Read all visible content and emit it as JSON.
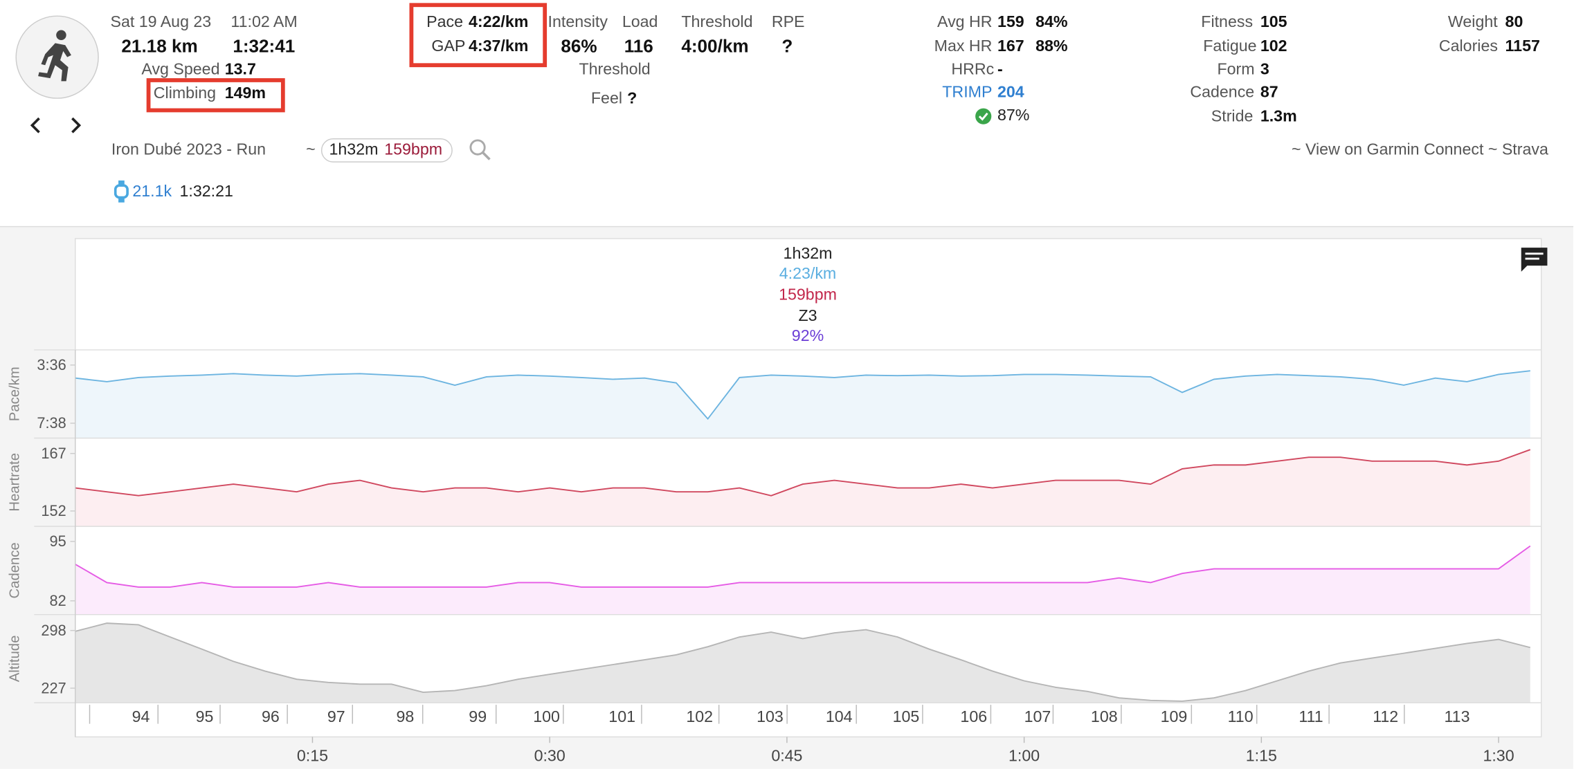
{
  "header": {
    "date": "Sat 19 Aug 23",
    "time": "11:02 AM",
    "distance": "21.18 km",
    "duration": "1:32:41",
    "avg_speed_label": "Avg Speed",
    "avg_speed": "13.7",
    "climbing_label": "Climbing",
    "climbing": "149m",
    "pace_label": "Pace",
    "pace": "4:22/km",
    "gap_label": "GAP",
    "gap": "4:37/km",
    "intensity_label": "Intensity",
    "intensity": "86%",
    "load_label": "Load",
    "load": "116",
    "threshold_label": "Threshold",
    "threshold": "4:00/km",
    "rpe_label": "RPE",
    "rpe": "?",
    "threshold_label2": "Threshold",
    "feel_label": "Feel",
    "feel": "?",
    "avg_hr_label": "Avg HR",
    "avg_hr": "159",
    "avg_hr_pct": "84%",
    "max_hr_label": "Max HR",
    "max_hr": "167",
    "max_hr_pct": "88%",
    "hrrc_label": "HRRc",
    "hrrc": "-",
    "trimp_label": "TRIMP",
    "trimp": "204",
    "trimp_pct": "87%",
    "fitness_label": "Fitness",
    "fitness": "105",
    "fatigue_label": "Fatigue",
    "fatigue": "102",
    "form_label": "Form",
    "form": "3",
    "cadence_label": "Cadence",
    "cadence": "87",
    "stride_label": "Stride",
    "stride": "1.3m",
    "weight_label": "Weight",
    "weight": "80",
    "calories_label": "Calories",
    "calories": "1157",
    "name": "Iron Dubé 2023 - Run",
    "tilde": "~",
    "pill_duration": "1h32m",
    "pill_hr": "159bpm",
    "links": "~ View on Garmin Connect ~ Strava",
    "split_distance": "21.1k",
    "split_time": "1:32:21"
  },
  "summary": {
    "duration": "1h32m",
    "pace": "4:23/km",
    "hr": "159bpm",
    "zone": "Z3",
    "efficiency": "92%"
  },
  "time_axis": {
    "xlim": [
      0,
      92.7
    ],
    "xticks": [
      {
        "value": 15,
        "label": "0:15"
      },
      {
        "value": 30,
        "label": "0:30"
      },
      {
        "value": 45,
        "label": "0:45"
      },
      {
        "value": 60,
        "label": "1:00"
      },
      {
        "value": 75,
        "label": "1:15"
      },
      {
        "value": 90,
        "label": "1:30"
      }
    ]
  },
  "km_axis": {
    "xticks": [
      {
        "value": 0.91,
        "label": "94"
      },
      {
        "value": 5.23,
        "label": "95"
      },
      {
        "value": 9.16,
        "label": "96"
      },
      {
        "value": 13.41,
        "label": "97"
      },
      {
        "value": 17.53,
        "label": "98"
      },
      {
        "value": 21.97,
        "label": "99"
      },
      {
        "value": 26.61,
        "label": "100"
      },
      {
        "value": 30.86,
        "label": "101"
      },
      {
        "value": 35.81,
        "label": "102"
      },
      {
        "value": 40.7,
        "label": "103"
      },
      {
        "value": 45.01,
        "label": "104"
      },
      {
        "value": 49.39,
        "label": "105"
      },
      {
        "value": 53.58,
        "label": "106"
      },
      {
        "value": 57.89,
        "label": "107"
      },
      {
        "value": 61.83,
        "label": "108"
      },
      {
        "value": 66.14,
        "label": "109"
      },
      {
        "value": 70.58,
        "label": "110"
      },
      {
        "value": 74.71,
        "label": "111"
      },
      {
        "value": 79.28,
        "label": "112"
      },
      {
        "value": 84.04,
        "label": "113"
      }
    ]
  },
  "chart_data": [
    {
      "type": "line",
      "ylabel": "Pace/km",
      "color": "#6cb4e0",
      "fill": "#eef6fb",
      "ylim": [
        520,
        153
      ],
      "yticks": [
        {
          "value": 216,
          "label": "3:36"
        },
        {
          "value": 458,
          "label": "7:38"
        }
      ],
      "x": [
        0,
        2,
        4,
        6,
        8,
        10,
        12,
        14,
        16,
        18,
        20,
        22,
        24,
        26,
        28,
        30,
        32,
        34,
        36,
        38,
        40,
        42,
        44,
        46,
        48,
        50,
        52,
        54,
        56,
        58,
        60,
        62,
        64,
        66,
        68,
        70,
        72,
        74,
        76,
        78,
        80,
        82,
        84,
        86,
        88,
        90,
        92
      ],
      "values": [
        270,
        285,
        268,
        262,
        258,
        252,
        258,
        262,
        255,
        252,
        258,
        265,
        300,
        265,
        258,
        262,
        268,
        275,
        270,
        290,
        440,
        268,
        258,
        262,
        268,
        258,
        260,
        258,
        262,
        260,
        255,
        255,
        258,
        262,
        265,
        330,
        275,
        262,
        255,
        260,
        265,
        275,
        300,
        270,
        285,
        255,
        240
      ]
    },
    {
      "type": "line",
      "ylabel": "Heartrate",
      "color": "#d0475e",
      "fill": "#fdeef1",
      "ylim": [
        148,
        171
      ],
      "yticks": [
        152,
        167
      ],
      "x": [
        0,
        2,
        4,
        6,
        8,
        10,
        12,
        14,
        16,
        18,
        20,
        22,
        24,
        26,
        28,
        30,
        32,
        34,
        36,
        38,
        40,
        42,
        44,
        46,
        48,
        50,
        52,
        54,
        56,
        58,
        60,
        62,
        64,
        66,
        68,
        70,
        72,
        74,
        76,
        78,
        80,
        82,
        84,
        86,
        88,
        90,
        92
      ],
      "values": [
        158,
        157,
        156,
        157,
        158,
        159,
        158,
        157,
        159,
        160,
        158,
        157,
        158,
        158,
        157,
        158,
        157,
        158,
        158,
        157,
        157,
        158,
        156,
        159,
        160,
        159,
        158,
        158,
        159,
        158,
        159,
        160,
        160,
        160,
        159,
        163,
        164,
        164,
        165,
        166,
        166,
        165,
        165,
        165,
        164,
        165,
        168
      ]
    },
    {
      "type": "line",
      "ylabel": "Cadence",
      "color": "#e55ae5",
      "fill": "#fcebfc",
      "ylim": [
        79,
        98.3
      ],
      "yticks": [
        82,
        95
      ],
      "x": [
        0,
        2,
        4,
        6,
        8,
        10,
        12,
        14,
        16,
        18,
        20,
        22,
        24,
        26,
        28,
        30,
        32,
        34,
        36,
        38,
        40,
        42,
        44,
        46,
        48,
        50,
        52,
        54,
        56,
        58,
        60,
        62,
        64,
        66,
        68,
        70,
        72,
        74,
        76,
        78,
        80,
        82,
        84,
        86,
        88,
        90,
        92
      ],
      "values": [
        90,
        86,
        85,
        85,
        86,
        85,
        85,
        85,
        86,
        85,
        85,
        85,
        85,
        85,
        86,
        86,
        85,
        85,
        85,
        85,
        85,
        86,
        86,
        86,
        86,
        86,
        86,
        86,
        86,
        86,
        86,
        86,
        86,
        87,
        86,
        88,
        89,
        89,
        89,
        89,
        89,
        89,
        89,
        89,
        89,
        89,
        94
      ]
    },
    {
      "type": "area",
      "ylabel": "Altitude",
      "color": "#b5b5b5",
      "fill": "#e6e6e6",
      "ylim": [
        209,
        317.6
      ],
      "yticks": [
        227,
        298
      ],
      "x": [
        0,
        2,
        4,
        6,
        8,
        10,
        12,
        14,
        16,
        18,
        20,
        22,
        24,
        26,
        28,
        30,
        32,
        34,
        36,
        38,
        40,
        42,
        44,
        46,
        48,
        50,
        52,
        54,
        56,
        58,
        60,
        62,
        64,
        66,
        68,
        70,
        72,
        74,
        76,
        78,
        80,
        82,
        84,
        86,
        88,
        90,
        92
      ],
      "values": [
        297,
        307,
        305,
        290,
        275,
        260,
        248,
        238,
        234,
        232,
        232,
        222,
        224,
        230,
        238,
        244,
        250,
        256,
        262,
        268,
        278,
        290,
        296,
        288,
        295,
        299,
        290,
        275,
        262,
        248,
        236,
        228,
        223,
        215,
        212,
        211,
        215,
        224,
        236,
        248,
        258,
        264,
        270,
        276,
        282,
        287,
        277
      ]
    }
  ]
}
